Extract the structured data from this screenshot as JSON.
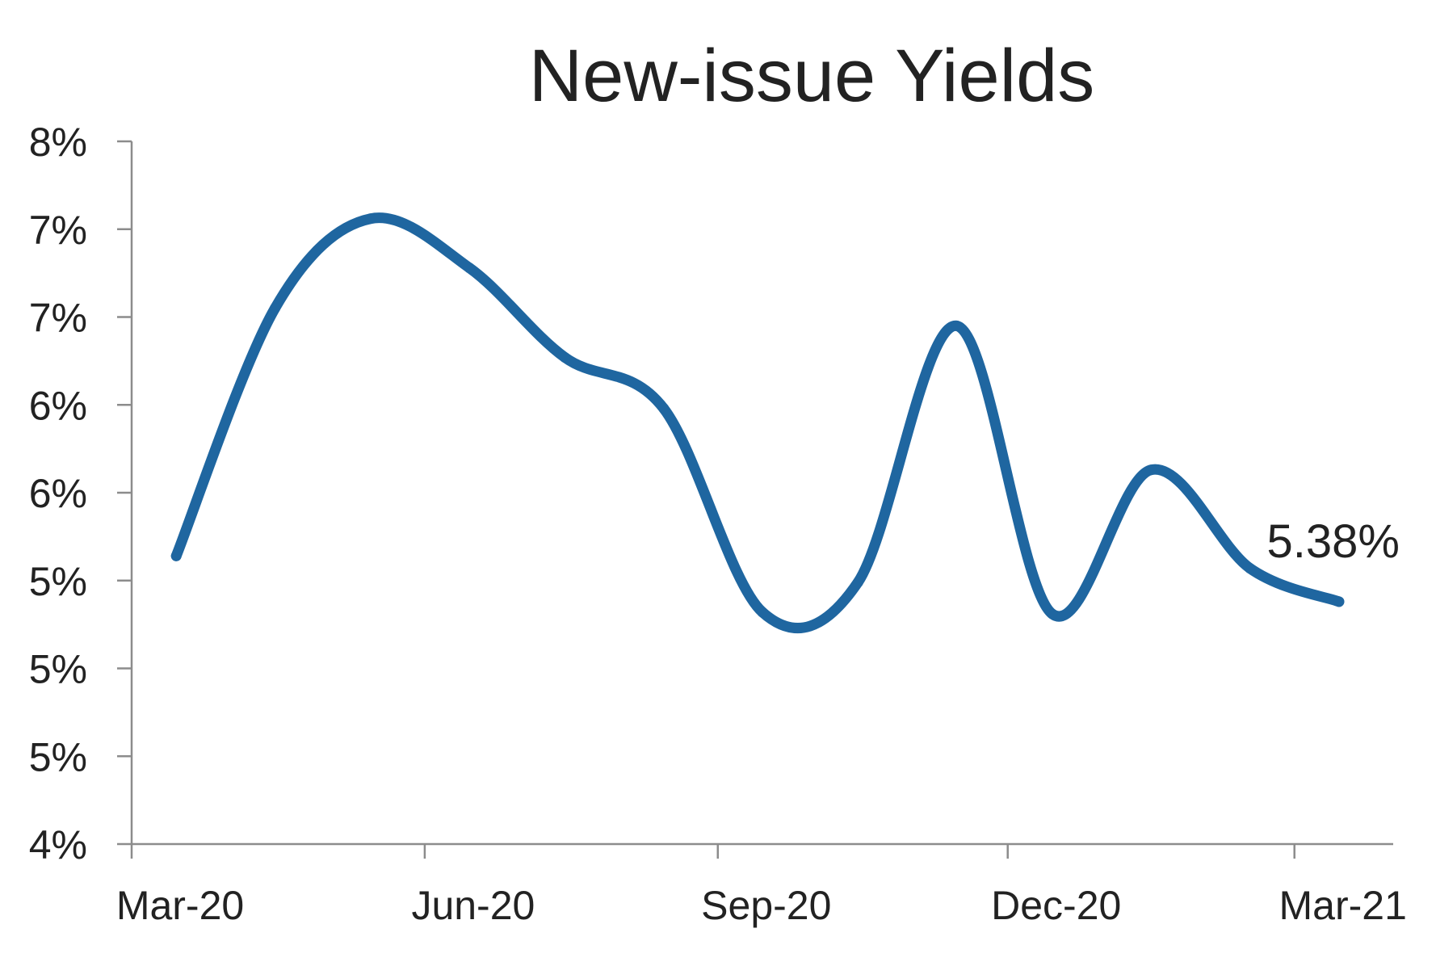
{
  "chart_data": {
    "type": "line",
    "title": "New-issue Yields",
    "xlabel": "",
    "ylabel": "",
    "x_tick_labels": [
      "Mar-20",
      "Jun-20",
      "Sep-20",
      "Dec-20",
      "Mar-21"
    ],
    "x_ticks": [
      "2020-03-01",
      "2020-06-01",
      "2020-09-01",
      "2020-12-01",
      "2021-03-01"
    ],
    "xlim": [
      "2020-03-01",
      "2021-04-01"
    ],
    "y_tick_labels": [
      "4%",
      "5%",
      "5%",
      "5%",
      "6%",
      "6%",
      "7%",
      "7%",
      "8%"
    ],
    "y_ticks": [
      4.0,
      4.5,
      5.0,
      5.5,
      6.0,
      6.5,
      7.0,
      7.5,
      8.0
    ],
    "ylim": [
      4.0,
      8.0
    ],
    "grid": false,
    "legend": "none",
    "line_color": "#1f66a0",
    "series": [
      {
        "x": [
          "2020-03-15",
          "2020-04-15",
          "2020-05-15",
          "2020-06-15",
          "2020-07-15",
          "2020-08-15",
          "2020-09-15",
          "2020-10-15",
          "2020-11-15",
          "2020-12-15",
          "2021-01-15",
          "2021-02-15",
          "2021-03-15"
        ],
        "values": [
          5.64,
          7.05,
          7.56,
          7.28,
          6.77,
          6.48,
          5.32,
          5.49,
          6.95,
          5.31,
          6.13,
          5.57,
          5.38
        ]
      }
    ],
    "data_labels": [
      {
        "text": "5.38%",
        "x": "2021-03-15",
        "y": 5.38
      }
    ]
  }
}
